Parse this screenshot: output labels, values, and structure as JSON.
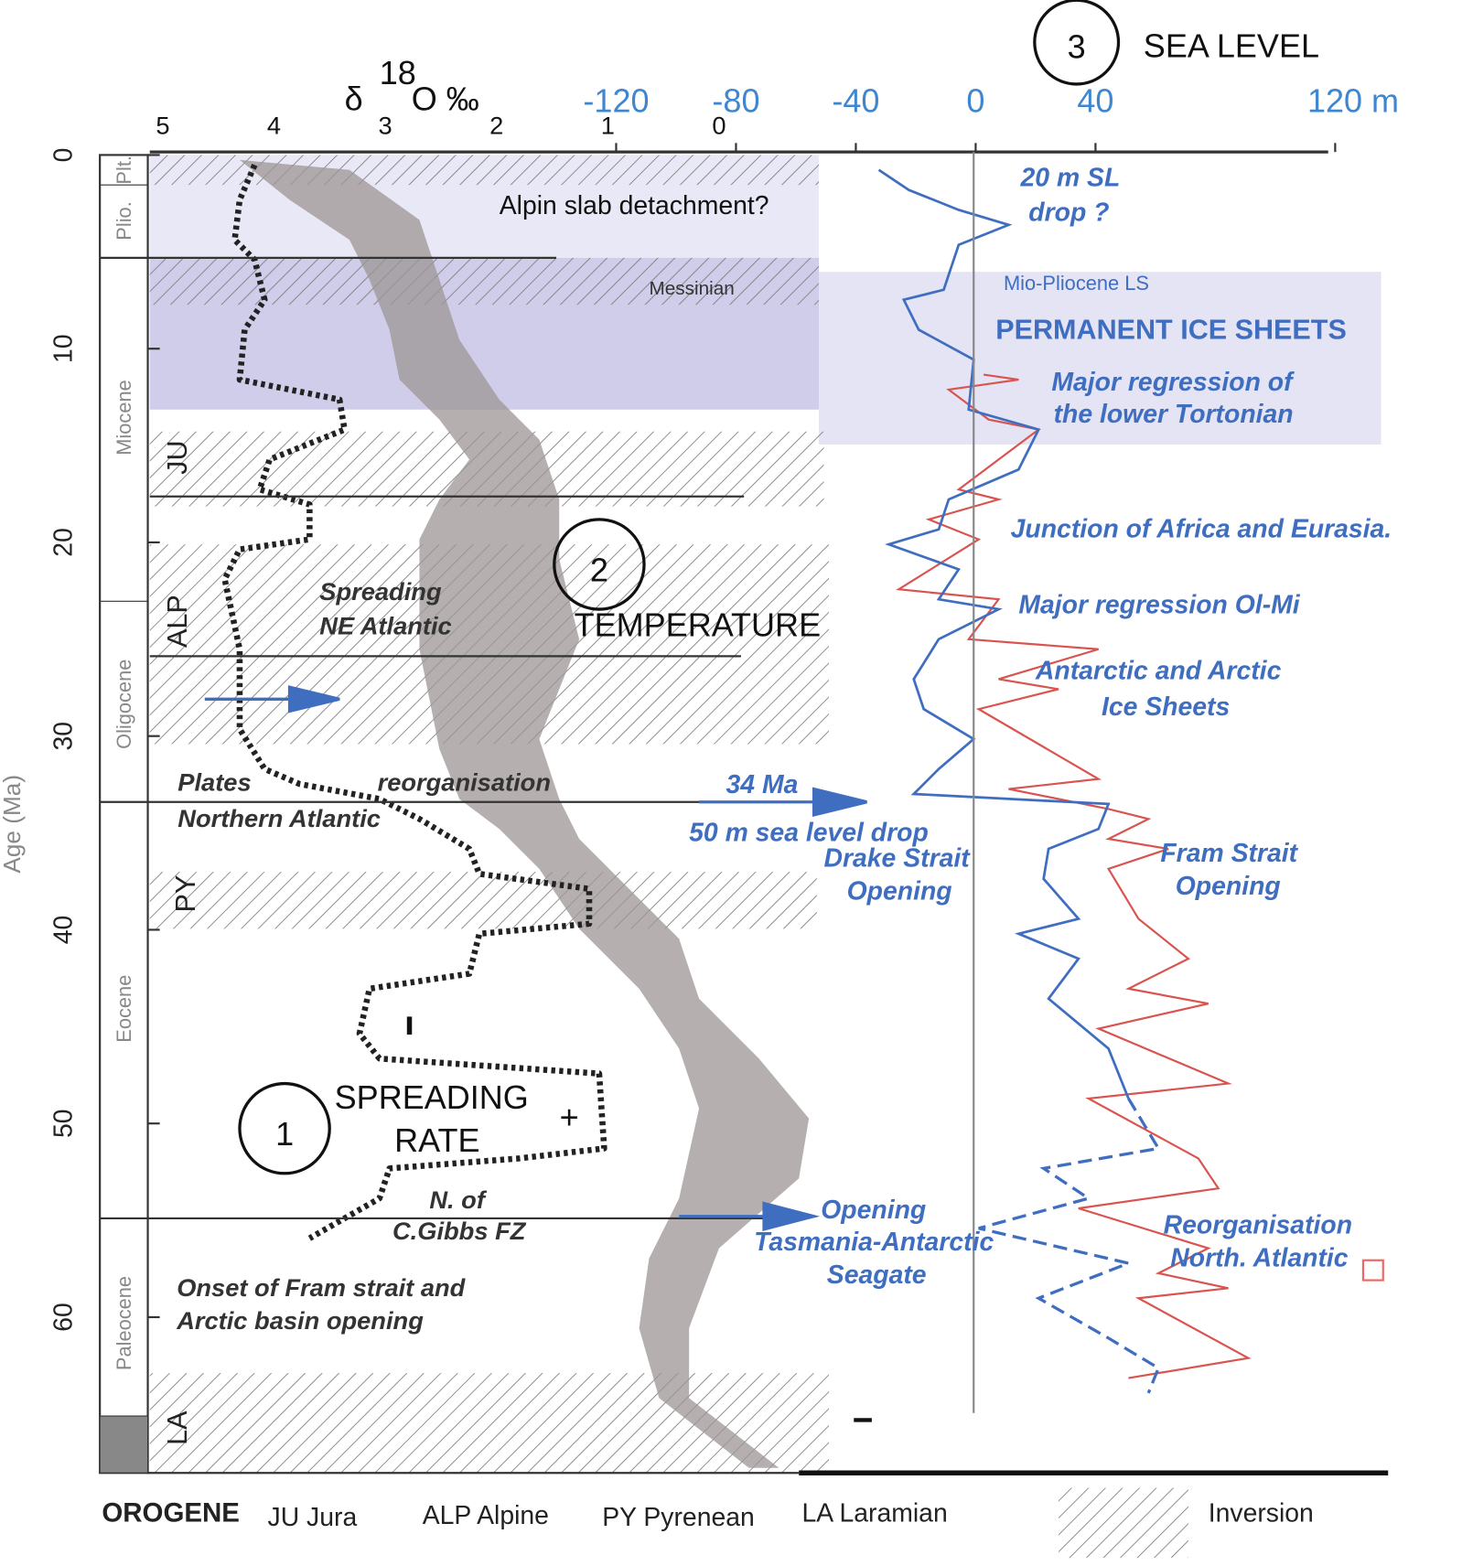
{
  "header": {
    "circle": "3",
    "title": "SEA LEVEL"
  },
  "d18o_axis": {
    "symbol": "δ",
    "superscript": "18",
    "unit": "O ‰",
    "ticks": [
      5,
      4,
      3,
      2,
      1,
      0
    ]
  },
  "sea_level_axis": {
    "ticks": [
      -120,
      -80,
      -40,
      0,
      40,
      {
        "value": 120,
        "label": "120 m"
      }
    ]
  },
  "age_axis": {
    "label": "Age (Ma)",
    "ticks": [
      0,
      10,
      20,
      30,
      40,
      50,
      60
    ]
  },
  "epochs": [
    "Plt.",
    "Plio.",
    "Miocene",
    "Oligocene",
    "Eocene",
    "Paleocene"
  ],
  "orogenes": [
    "JU",
    "ALP",
    "PY",
    "LA"
  ],
  "annotations": {
    "slab": "Alpin slab detachment?",
    "messinian": "Messinian",
    "sl_drop": [
      "20 m SL",
      "drop ?"
    ],
    "mio_plio": "Mio-Pliocene  LS",
    "ice_sheets": "PERMANENT ICE SHEETS",
    "tortonian": [
      "Major regression of",
      "the lower Tortonian"
    ],
    "junction": "Junction of Africa and Eurasia.",
    "ol_mi": "Major regression Ol-Mi",
    "antarctic": [
      "Antarctic and Arctic",
      "Ice Sheets"
    ],
    "temperature": {
      "circle": "2",
      "label": "TEMPERATURE"
    },
    "spreading_ne": [
      "Spreading",
      "NE Atlantic"
    ],
    "plates": [
      "Plates",
      "reorganisation",
      "Northern Atlantic"
    ],
    "ma34": [
      "34 Ma",
      "50 m sea level drop"
    ],
    "drake": [
      "Drake Strait",
      "Opening"
    ],
    "fram": [
      "Fram Strait",
      "Opening"
    ],
    "spreading_rate": {
      "circle": "1",
      "lines": [
        "SPREADING",
        "RATE"
      ],
      "plus": "+"
    },
    "gibbs": [
      "N. of",
      "C.Gibbs FZ"
    ],
    "tasmania": [
      "Opening",
      "Tasmania-Antarctic",
      "Seagate"
    ],
    "reorg": [
      "Reorganisation",
      "North. Atlantic"
    ],
    "onset": [
      "Onset of  Fram strait and",
      "Arctic basin opening"
    ]
  },
  "legend": {
    "title": "OROGENE",
    "items": [
      "JU Jura",
      "ALP Alpine",
      "PY Pyrenean",
      "LA Laramian"
    ],
    "inversion": "Inversion"
  }
}
